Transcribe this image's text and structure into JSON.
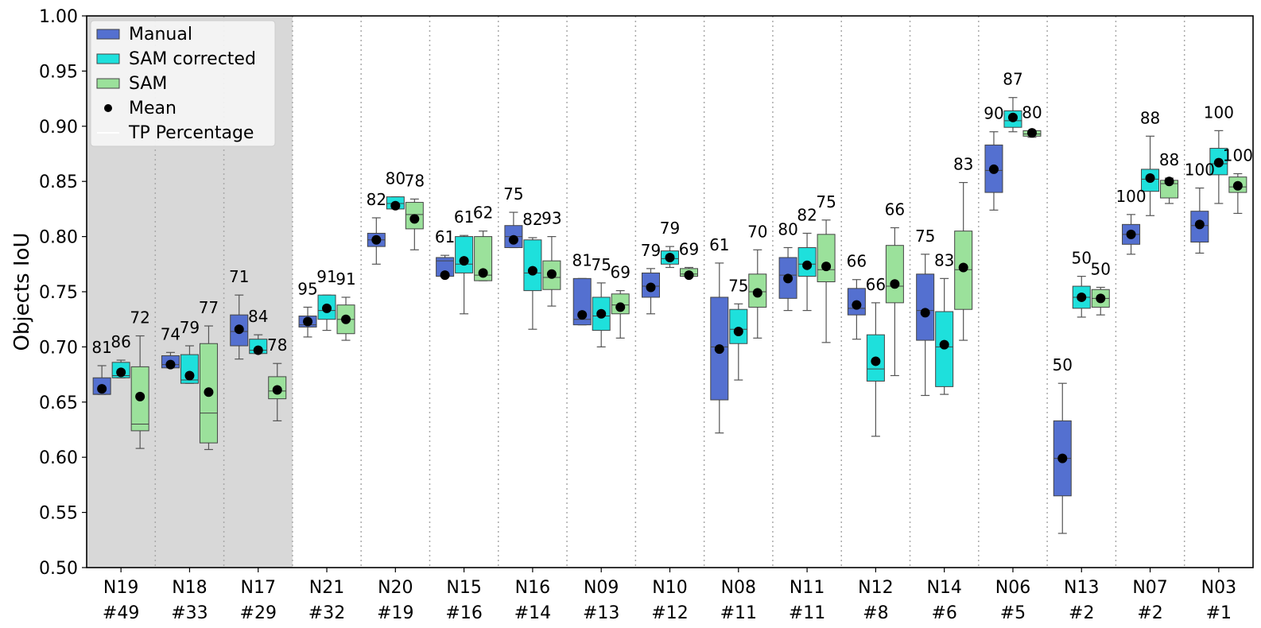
{
  "chart_data": {
    "type": "box",
    "ylabel": "Objects IoU",
    "ylim": [
      0.5,
      1.0
    ],
    "yticks": [
      "0.50",
      "0.55",
      "0.60",
      "0.65",
      "0.70",
      "0.75",
      "0.80",
      "0.85",
      "0.90",
      "0.95",
      "1.00"
    ],
    "shaded_groups": [
      0,
      1,
      2
    ],
    "legend": {
      "placement": "top-left",
      "entries": [
        "Manual",
        "SAM corrected",
        "SAM",
        "Mean",
        "TP Percentage"
      ]
    },
    "series": [
      {
        "name": "Manual",
        "color": "#5470d0"
      },
      {
        "name": "SAM corrected",
        "color": "#1ee0dc"
      },
      {
        "name": "SAM",
        "color": "#9be19b"
      }
    ],
    "groups": [
      {
        "line1": "N19",
        "line2": "#49",
        "boxes": [
          {
            "whislo": 0.657,
            "q1": 0.657,
            "med": 0.657,
            "q3": 0.672,
            "whishi": 0.683,
            "mean": 0.662,
            "tp": "81"
          },
          {
            "whislo": 0.672,
            "q1": 0.672,
            "med": 0.674,
            "q3": 0.686,
            "whishi": 0.688,
            "mean": 0.677,
            "tp": "86"
          },
          {
            "whislo": 0.608,
            "q1": 0.624,
            "med": 0.63,
            "q3": 0.682,
            "whishi": 0.71,
            "mean": 0.655,
            "tp": "72"
          }
        ]
      },
      {
        "line1": "N18",
        "line2": "#33",
        "boxes": [
          {
            "whislo": 0.681,
            "q1": 0.681,
            "med": 0.684,
            "q3": 0.692,
            "whishi": 0.695,
            "mean": 0.684,
            "tp": "74"
          },
          {
            "whislo": 0.667,
            "q1": 0.667,
            "med": 0.67,
            "q3": 0.693,
            "whishi": 0.701,
            "mean": 0.674,
            "tp": "79"
          },
          {
            "whislo": 0.607,
            "q1": 0.613,
            "med": 0.64,
            "q3": 0.703,
            "whishi": 0.719,
            "mean": 0.659,
            "tp": "77"
          }
        ]
      },
      {
        "line1": "N17",
        "line2": "#29",
        "boxes": [
          {
            "whislo": 0.689,
            "q1": 0.701,
            "med": 0.714,
            "q3": 0.729,
            "whishi": 0.747,
            "mean": 0.716,
            "tp": "71"
          },
          {
            "whislo": 0.694,
            "q1": 0.694,
            "med": 0.697,
            "q3": 0.707,
            "whishi": 0.711,
            "mean": 0.697,
            "tp": "84"
          },
          {
            "whislo": 0.633,
            "q1": 0.653,
            "med": 0.66,
            "q3": 0.673,
            "whishi": 0.685,
            "mean": 0.661,
            "tp": "78"
          }
        ]
      },
      {
        "line1": "N21",
        "line2": "#32",
        "boxes": [
          {
            "whislo": 0.709,
            "q1": 0.718,
            "med": 0.72,
            "q3": 0.728,
            "whishi": 0.736,
            "mean": 0.723,
            "tp": "95"
          },
          {
            "whislo": 0.715,
            "q1": 0.725,
            "med": 0.733,
            "q3": 0.747,
            "whishi": 0.747,
            "mean": 0.735,
            "tp": "91"
          },
          {
            "whislo": 0.706,
            "q1": 0.712,
            "med": 0.725,
            "q3": 0.738,
            "whishi": 0.745,
            "mean": 0.725,
            "tp": "91"
          }
        ]
      },
      {
        "line1": "N20",
        "line2": "#19",
        "boxes": [
          {
            "whislo": 0.775,
            "q1": 0.791,
            "med": 0.797,
            "q3": 0.803,
            "whishi": 0.817,
            "mean": 0.797,
            "tp": "82"
          },
          {
            "whislo": 0.825,
            "q1": 0.825,
            "med": 0.83,
            "q3": 0.836,
            "whishi": 0.836,
            "mean": 0.828,
            "tp": "80"
          },
          {
            "whislo": 0.788,
            "q1": 0.807,
            "med": 0.82,
            "q3": 0.831,
            "whishi": 0.834,
            "mean": 0.816,
            "tp": "78"
          }
        ]
      },
      {
        "line1": "N15",
        "line2": "#16",
        "boxes": [
          {
            "whislo": 0.764,
            "q1": 0.764,
            "med": 0.778,
            "q3": 0.781,
            "whishi": 0.783,
            "mean": 0.765,
            "tp": "61"
          },
          {
            "whislo": 0.73,
            "q1": 0.767,
            "med": 0.775,
            "q3": 0.8,
            "whishi": 0.801,
            "mean": 0.778,
            "tp": "61"
          },
          {
            "whislo": 0.76,
            "q1": 0.76,
            "med": 0.765,
            "q3": 0.8,
            "whishi": 0.805,
            "mean": 0.767,
            "tp": "62"
          }
        ]
      },
      {
        "line1": "N16",
        "line2": "#14",
        "boxes": [
          {
            "whislo": 0.79,
            "q1": 0.79,
            "med": 0.8,
            "q3": 0.81,
            "whishi": 0.822,
            "mean": 0.797,
            "tp": "75"
          },
          {
            "whislo": 0.716,
            "q1": 0.751,
            "med": 0.767,
            "q3": 0.797,
            "whishi": 0.799,
            "mean": 0.769,
            "tp": "82"
          },
          {
            "whislo": 0.737,
            "q1": 0.752,
            "med": 0.763,
            "q3": 0.778,
            "whishi": 0.8,
            "mean": 0.766,
            "tp": "93"
          }
        ]
      },
      {
        "line1": "N09",
        "line2": "#13",
        "boxes": [
          {
            "whislo": 0.72,
            "q1": 0.72,
            "med": 0.725,
            "q3": 0.762,
            "whishi": 0.762,
            "mean": 0.729,
            "tp": "81"
          },
          {
            "whislo": 0.7,
            "q1": 0.715,
            "med": 0.728,
            "q3": 0.745,
            "whishi": 0.758,
            "mean": 0.73,
            "tp": "75"
          },
          {
            "whislo": 0.708,
            "q1": 0.73,
            "med": 0.738,
            "q3": 0.748,
            "whishi": 0.751,
            "mean": 0.736,
            "tp": "69"
          }
        ]
      },
      {
        "line1": "N10",
        "line2": "#12",
        "boxes": [
          {
            "whislo": 0.73,
            "q1": 0.745,
            "med": 0.755,
            "q3": 0.767,
            "whishi": 0.771,
            "mean": 0.754,
            "tp": "79"
          },
          {
            "whislo": 0.772,
            "q1": 0.775,
            "med": 0.78,
            "q3": 0.787,
            "whishi": 0.791,
            "mean": 0.781,
            "tp": "79"
          },
          {
            "whislo": 0.764,
            "q1": 0.764,
            "med": 0.766,
            "q3": 0.771,
            "whishi": 0.772,
            "mean": 0.765,
            "tp": "69"
          }
        ]
      },
      {
        "line1": "N08",
        "line2": "#11",
        "boxes": [
          {
            "whislo": 0.622,
            "q1": 0.652,
            "med": 0.7,
            "q3": 0.745,
            "whishi": 0.776,
            "mean": 0.698,
            "tp": "61"
          },
          {
            "whislo": 0.67,
            "q1": 0.703,
            "med": 0.716,
            "q3": 0.734,
            "whishi": 0.739,
            "mean": 0.714,
            "tp": "75"
          },
          {
            "whislo": 0.708,
            "q1": 0.736,
            "med": 0.75,
            "q3": 0.766,
            "whishi": 0.788,
            "mean": 0.749,
            "tp": "70"
          }
        ]
      },
      {
        "line1": "N11",
        "line2": "#11",
        "boxes": [
          {
            "whislo": 0.733,
            "q1": 0.744,
            "med": 0.765,
            "q3": 0.781,
            "whishi": 0.79,
            "mean": 0.762,
            "tp": "80"
          },
          {
            "whislo": 0.733,
            "q1": 0.764,
            "med": 0.775,
            "q3": 0.79,
            "whishi": 0.803,
            "mean": 0.774,
            "tp": "82"
          },
          {
            "whislo": 0.704,
            "q1": 0.759,
            "med": 0.77,
            "q3": 0.802,
            "whishi": 0.815,
            "mean": 0.773,
            "tp": "75"
          }
        ]
      },
      {
        "line1": "N12",
        "line2": "#8",
        "boxes": [
          {
            "whislo": 0.707,
            "q1": 0.729,
            "med": 0.735,
            "q3": 0.753,
            "whishi": 0.761,
            "mean": 0.738,
            "tp": "66"
          },
          {
            "whislo": 0.619,
            "q1": 0.669,
            "med": 0.68,
            "q3": 0.711,
            "whishi": 0.74,
            "mean": 0.687,
            "tp": "66"
          },
          {
            "whislo": 0.674,
            "q1": 0.74,
            "med": 0.755,
            "q3": 0.792,
            "whishi": 0.808,
            "mean": 0.757,
            "tp": "66"
          }
        ]
      },
      {
        "line1": "N14",
        "line2": "#6",
        "boxes": [
          {
            "whislo": 0.656,
            "q1": 0.706,
            "med": 0.733,
            "q3": 0.766,
            "whishi": 0.784,
            "mean": 0.731,
            "tp": "75"
          },
          {
            "whislo": 0.657,
            "q1": 0.664,
            "med": 0.7,
            "q3": 0.732,
            "whishi": 0.762,
            "mean": 0.702,
            "tp": "83"
          },
          {
            "whislo": 0.706,
            "q1": 0.734,
            "med": 0.77,
            "q3": 0.805,
            "whishi": 0.849,
            "mean": 0.772,
            "tp": "83"
          }
        ]
      },
      {
        "line1": "N06",
        "line2": "#5",
        "boxes": [
          {
            "whislo": 0.824,
            "q1": 0.84,
            "med": 0.86,
            "q3": 0.883,
            "whishi": 0.895,
            "mean": 0.861,
            "tp": "90"
          },
          {
            "whislo": 0.895,
            "q1": 0.899,
            "med": 0.905,
            "q3": 0.914,
            "whishi": 0.926,
            "mean": 0.908,
            "tp": "87"
          },
          {
            "whislo": 0.89,
            "q1": 0.891,
            "med": 0.893,
            "q3": 0.896,
            "whishi": 0.896,
            "mean": 0.894,
            "tp": "80"
          }
        ]
      },
      {
        "line1": "N13",
        "line2": "#2",
        "boxes": [
          {
            "whislo": 0.531,
            "q1": 0.565,
            "med": 0.599,
            "q3": 0.633,
            "whishi": 0.667,
            "mean": 0.599,
            "tp": "50"
          },
          {
            "whislo": 0.727,
            "q1": 0.735,
            "med": 0.745,
            "q3": 0.755,
            "whishi": 0.764,
            "mean": 0.745,
            "tp": "50"
          },
          {
            "whislo": 0.729,
            "q1": 0.736,
            "med": 0.744,
            "q3": 0.752,
            "whishi": 0.754,
            "mean": 0.744,
            "tp": "50"
          }
        ]
      },
      {
        "line1": "N07",
        "line2": "#2",
        "boxes": [
          {
            "whislo": 0.784,
            "q1": 0.793,
            "med": 0.802,
            "q3": 0.811,
            "whishi": 0.82,
            "mean": 0.802,
            "tp": "100"
          },
          {
            "whislo": 0.819,
            "q1": 0.841,
            "med": 0.852,
            "q3": 0.861,
            "whishi": 0.891,
            "mean": 0.853,
            "tp": "88"
          },
          {
            "whislo": 0.83,
            "q1": 0.835,
            "med": 0.848,
            "q3": 0.851,
            "whishi": 0.853,
            "mean": 0.85,
            "tp": "88"
          }
        ]
      },
      {
        "line1": "N03",
        "line2": "#1",
        "boxes": [
          {
            "whislo": 0.785,
            "q1": 0.795,
            "med": 0.81,
            "q3": 0.823,
            "whishi": 0.844,
            "mean": 0.811,
            "tp": "100"
          },
          {
            "whislo": 0.83,
            "q1": 0.856,
            "med": 0.866,
            "q3": 0.88,
            "whishi": 0.896,
            "mean": 0.867,
            "tp": "100"
          },
          {
            "whislo": 0.821,
            "q1": 0.84,
            "med": 0.845,
            "q3": 0.854,
            "whishi": 0.857,
            "mean": 0.846,
            "tp": "100"
          }
        ]
      }
    ]
  }
}
